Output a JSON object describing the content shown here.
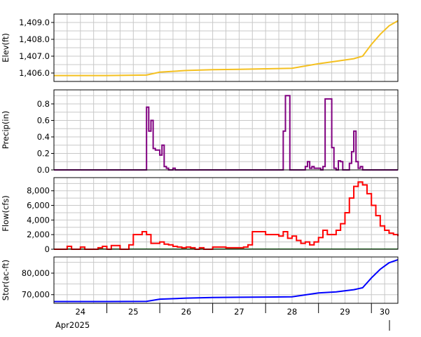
{
  "chart_data": {
    "type": "line",
    "x_axis": {
      "tick_labels": [
        "24",
        "25",
        "26",
        "27",
        "28",
        "29",
        "30"
      ],
      "month_label": "Apr2025",
      "range": [
        "2025-04-24T00:00",
        "2025-04-30T12:00"
      ],
      "grid": true
    },
    "panels": [
      {
        "ylabel": "Elev(ft)",
        "ylim": [
          1405.5,
          1409.5
        ],
        "yticks": [
          "1,406.0",
          "1,407.0",
          "1,408.0",
          "1,409.0"
        ],
        "ytick_values": [
          1406,
          1407,
          1408,
          1409
        ],
        "style": "line",
        "color": "#f4c020",
        "series": {
          "x": [
            "2025-04-24T00:00",
            "2025-04-25T00:00",
            "2025-04-25T18:00",
            "2025-04-26T00:00",
            "2025-04-26T12:00",
            "2025-04-27T00:00",
            "2025-04-27T12:00",
            "2025-04-28T00:00",
            "2025-04-28T12:00",
            "2025-04-29T00:00",
            "2025-04-29T08:00",
            "2025-04-29T16:00",
            "2025-04-29T20:00",
            "2025-04-30T00:00",
            "2025-04-30T04:00",
            "2025-04-30T08:00",
            "2025-04-30T12:00"
          ],
          "y": [
            1405.85,
            1405.85,
            1405.88,
            1406.05,
            1406.15,
            1406.2,
            1406.22,
            1406.25,
            1406.28,
            1406.55,
            1406.7,
            1406.85,
            1407.0,
            1407.7,
            1408.3,
            1408.8,
            1409.1
          ]
        }
      },
      {
        "ylabel": "Precip(in)",
        "ylim": [
          0,
          0.97
        ],
        "yticks": [
          "0.0",
          "0.2",
          "0.4",
          "0.6",
          "0.8"
        ],
        "ytick_values": [
          0,
          0.2,
          0.4,
          0.6,
          0.8
        ],
        "style": "step",
        "color": "#800080",
        "series": {
          "x": [
            "2025-04-24T00:00",
            "2025-04-25T18:00",
            "2025-04-25T19:00",
            "2025-04-25T20:00",
            "2025-04-25T21:00",
            "2025-04-25T22:00",
            "2025-04-26T00:00",
            "2025-04-26T01:00",
            "2025-04-26T02:00",
            "2025-04-26T03:00",
            "2025-04-26T04:00",
            "2025-04-26T06:00",
            "2025-04-26T07:00",
            "2025-04-28T00:00",
            "2025-04-28T08:00",
            "2025-04-28T09:00",
            "2025-04-28T11:00",
            "2025-04-28T12:00",
            "2025-04-28T18:00",
            "2025-04-28T19:00",
            "2025-04-28T20:00",
            "2025-04-28T21:00",
            "2025-04-28T22:00",
            "2025-04-29T01:00",
            "2025-04-29T02:00",
            "2025-04-29T03:00",
            "2025-04-29T06:00",
            "2025-04-29T07:00",
            "2025-04-29T08:00",
            "2025-04-29T09:00",
            "2025-04-29T10:00",
            "2025-04-29T11:00",
            "2025-04-29T14:00",
            "2025-04-29T15:00",
            "2025-04-29T16:00",
            "2025-04-29T17:00",
            "2025-04-29T18:00",
            "2025-04-29T19:00",
            "2025-04-29T20:00",
            "2025-04-29T21:00",
            "2025-04-30T00:00",
            "2025-04-30T12:00"
          ],
          "y": [
            0,
            0.76,
            0.47,
            0.6,
            0.26,
            0.24,
            0.18,
            0.3,
            0.04,
            0.02,
            0,
            0.02,
            0,
            0,
            0.47,
            0.9,
            0,
            0,
            0.04,
            0.1,
            0.02,
            0.04,
            0.02,
            0,
            0.04,
            0.86,
            0.27,
            0.02,
            0,
            0.11,
            0.1,
            0,
            0.08,
            0.22,
            0.47,
            0.1,
            0.02,
            0.04,
            0,
            0,
            0,
            0
          ]
        }
      },
      {
        "ylabel": "Flow(cfs)",
        "ylim": [
          0,
          9800
        ],
        "yticks": [
          "0",
          "2,000",
          "4,000",
          "6,000",
          "8,000"
        ],
        "ytick_values": [
          0,
          2000,
          4000,
          6000,
          8000
        ],
        "style": "step",
        "color": "#ff0000",
        "baseline_color": "#008000",
        "series": {
          "x": [
            "2025-04-24T00:00",
            "2025-04-24T06:00",
            "2025-04-24T08:00",
            "2025-04-24T12:00",
            "2025-04-24T14:00",
            "2025-04-24T20:00",
            "2025-04-24T22:00",
            "2025-04-25T00:00",
            "2025-04-25T02:00",
            "2025-04-25T06:00",
            "2025-04-25T08:00",
            "2025-04-25T10:00",
            "2025-04-25T12:00",
            "2025-04-25T16:00",
            "2025-04-25T18:00",
            "2025-04-25T20:00",
            "2025-04-26T00:00",
            "2025-04-26T02:00",
            "2025-04-26T04:00",
            "2025-04-26T06:00",
            "2025-04-26T08:00",
            "2025-04-26T10:00",
            "2025-04-26T12:00",
            "2025-04-26T14:00",
            "2025-04-26T16:00",
            "2025-04-26T18:00",
            "2025-04-26T20:00",
            "2025-04-27T00:00",
            "2025-04-27T06:00",
            "2025-04-27T14:00",
            "2025-04-27T16:00",
            "2025-04-27T18:00",
            "2025-04-28T00:00",
            "2025-04-28T06:00",
            "2025-04-28T08:00",
            "2025-04-28T10:00",
            "2025-04-28T12:00",
            "2025-04-28T14:00",
            "2025-04-28T16:00",
            "2025-04-28T18:00",
            "2025-04-28T20:00",
            "2025-04-28T22:00",
            "2025-04-29T00:00",
            "2025-04-29T02:00",
            "2025-04-29T04:00",
            "2025-04-29T06:00",
            "2025-04-29T08:00",
            "2025-04-29T10:00",
            "2025-04-29T12:00",
            "2025-04-29T14:00",
            "2025-04-29T16:00",
            "2025-04-29T18:00",
            "2025-04-29T20:00",
            "2025-04-29T22:00",
            "2025-04-30T00:00",
            "2025-04-30T02:00",
            "2025-04-30T04:00",
            "2025-04-30T06:00",
            "2025-04-30T08:00",
            "2025-04-30T10:00",
            "2025-04-30T12:00"
          ],
          "y": [
            0,
            400,
            0,
            300,
            0,
            200,
            400,
            0,
            500,
            0,
            0,
            600,
            2000,
            2400,
            2000,
            800,
            1000,
            700,
            600,
            400,
            300,
            200,
            300,
            200,
            0,
            200,
            0,
            300,
            200,
            300,
            600,
            2400,
            2000,
            1800,
            2400,
            1500,
            1800,
            1200,
            800,
            1000,
            600,
            1000,
            1600,
            2600,
            2000,
            2000,
            2600,
            3500,
            5000,
            7000,
            8600,
            9200,
            8800,
            7600,
            6000,
            4600,
            3200,
            2600,
            2200,
            2000,
            1800
          ]
        }
      },
      {
        "ylabel": "Stor(ac-ft)",
        "ylim": [
          66000,
          87500
        ],
        "yticks": [
          "70,000",
          "80,000"
        ],
        "ytick_values": [
          70000,
          80000
        ],
        "style": "line",
        "color": "#0000ff",
        "series": {
          "x": [
            "2025-04-24T00:00",
            "2025-04-25T00:00",
            "2025-04-25T18:00",
            "2025-04-26T00:00",
            "2025-04-26T12:00",
            "2025-04-27T00:00",
            "2025-04-27T12:00",
            "2025-04-28T00:00",
            "2025-04-28T12:00",
            "2025-04-29T00:00",
            "2025-04-29T08:00",
            "2025-04-29T16:00",
            "2025-04-29T20:00",
            "2025-04-30T00:00",
            "2025-04-30T04:00",
            "2025-04-30T08:00",
            "2025-04-30T12:00"
          ],
          "y": [
            66800,
            66800,
            66900,
            67900,
            68400,
            68700,
            68800,
            68900,
            69000,
            70800,
            71300,
            72300,
            73200,
            77800,
            81800,
            84800,
            86200
          ]
        }
      }
    ]
  }
}
